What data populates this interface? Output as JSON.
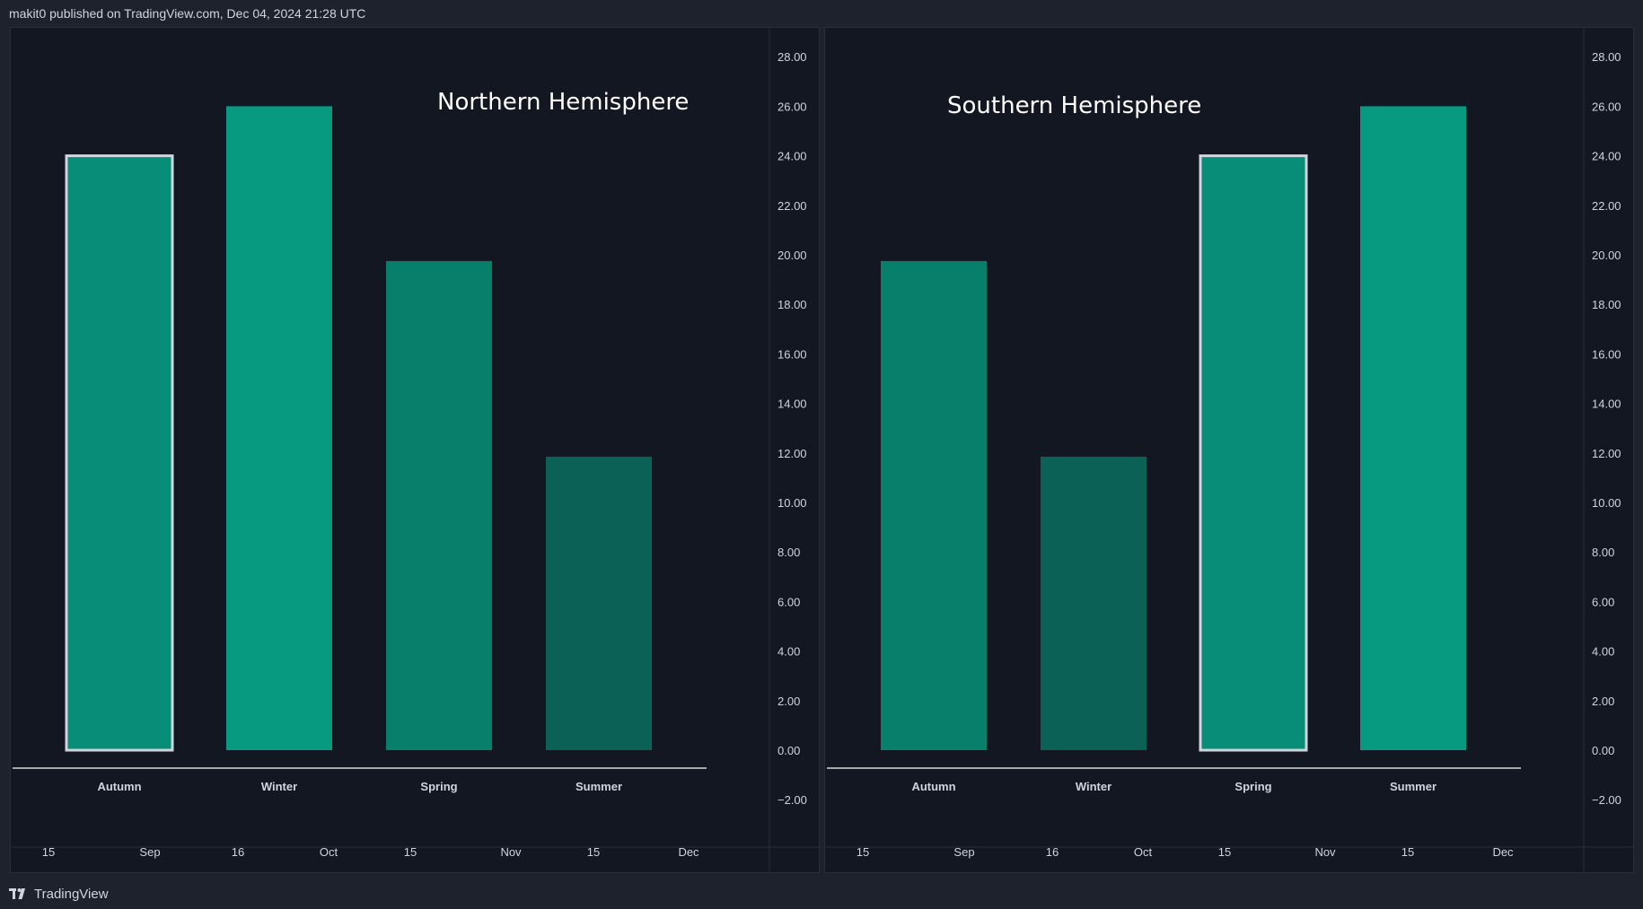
{
  "header": {
    "text": "makit0 published on TradingView.com, Dec 04, 2024 21:28 UTC"
  },
  "footer": {
    "brand": "TradingView",
    "logo_icon": "tradingview-logo-icon"
  },
  "colors": {
    "background": "#131722",
    "frame": "#1e222d",
    "bar_highest": "#089981",
    "bar_high": "#088d78",
    "bar_mid": "#087f6b",
    "bar_low": "#0c6157",
    "highlight_border": "#d1d4dc",
    "axis_text": "#d1d4dc",
    "baseline": "#ffffff"
  },
  "chart_data": [
    {
      "type": "bar",
      "title": "Northern Hemisphere",
      "categories": [
        "Autumn",
        "Winter",
        "Spring",
        "Summer"
      ],
      "values": [
        24,
        26,
        19.75,
        11.85
      ],
      "highlighted": "Autumn",
      "ylim": [
        -3,
        29
      ],
      "yticks": [
        "28.00",
        "26.00",
        "24.00",
        "22.00",
        "20.00",
        "18.00",
        "16.00",
        "14.00",
        "12.00",
        "10.00",
        "8.00",
        "6.00",
        "4.00",
        "2.00",
        "0.00",
        "−2.00"
      ],
      "time_axis": [
        "15",
        "Sep",
        "16",
        "Oct",
        "15",
        "Nov",
        "15",
        "Dec"
      ],
      "grid": false
    },
    {
      "type": "bar",
      "title": "Southern Hemisphere",
      "categories": [
        "Autumn",
        "Winter",
        "Spring",
        "Summer"
      ],
      "values": [
        19.75,
        11.85,
        24,
        26
      ],
      "highlighted": "Spring",
      "ylim": [
        -3,
        29
      ],
      "yticks": [
        "28.00",
        "26.00",
        "24.00",
        "22.00",
        "20.00",
        "18.00",
        "16.00",
        "14.00",
        "12.00",
        "10.00",
        "8.00",
        "6.00",
        "4.00",
        "2.00",
        "0.00",
        "−2.00"
      ],
      "time_axis": [
        "15",
        "Sep",
        "16",
        "Oct",
        "15",
        "Nov",
        "15",
        "Dec"
      ],
      "grid": false
    }
  ]
}
